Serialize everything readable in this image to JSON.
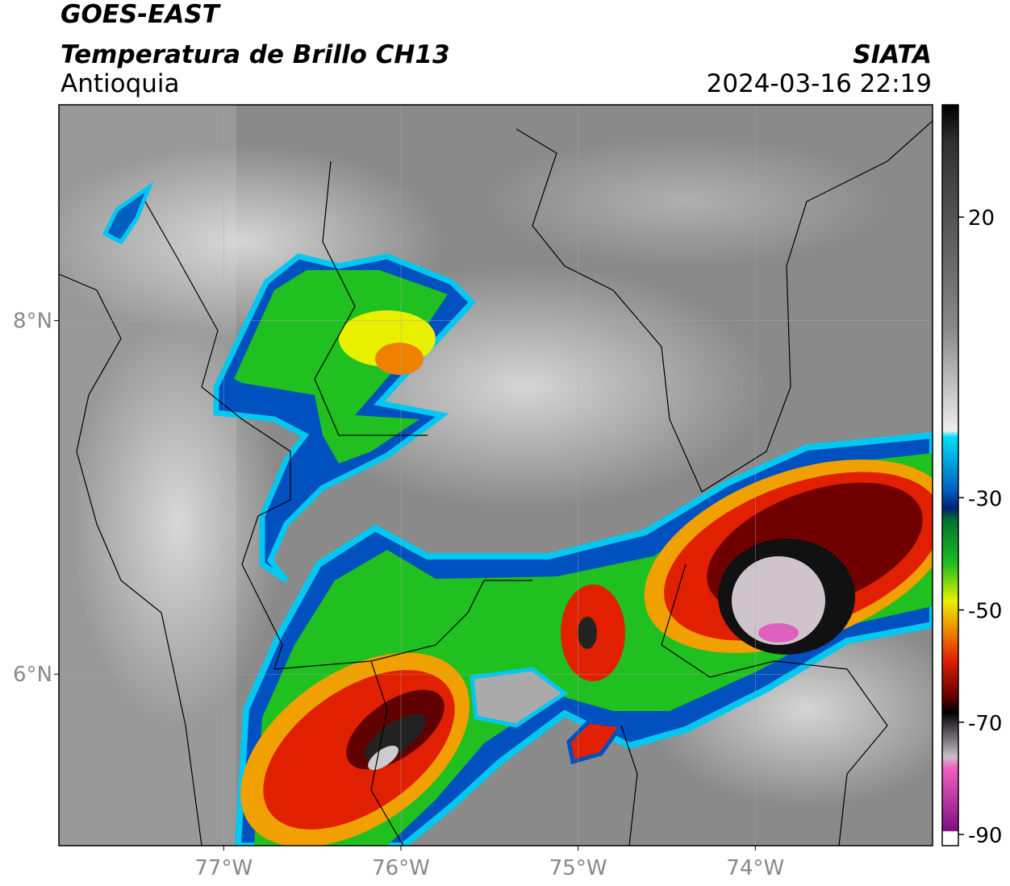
{
  "header": {
    "title": "GOES-EAST",
    "subtitle": "Temperatura de Brillo CH13",
    "region": "Antioquia",
    "source": "SIATA",
    "datetime": "2024-03-16 22:19"
  },
  "map": {
    "xlim": [
      -77.93,
      -73
    ],
    "ylim": [
      5.03,
      9.22
    ],
    "xticks": [
      {
        "value": -77,
        "label": "77°W"
      },
      {
        "value": -76,
        "label": "76°W"
      },
      {
        "value": -75,
        "label": "75°W"
      },
      {
        "value": -74,
        "label": "74°W"
      }
    ],
    "yticks": [
      {
        "value": 8,
        "label": "8°N"
      },
      {
        "value": 6,
        "label": "6°N"
      }
    ]
  },
  "colorbar": {
    "lim": [
      -92,
      40
    ],
    "ticks": [
      20,
      -30,
      -50,
      -70,
      -90
    ]
  }
}
